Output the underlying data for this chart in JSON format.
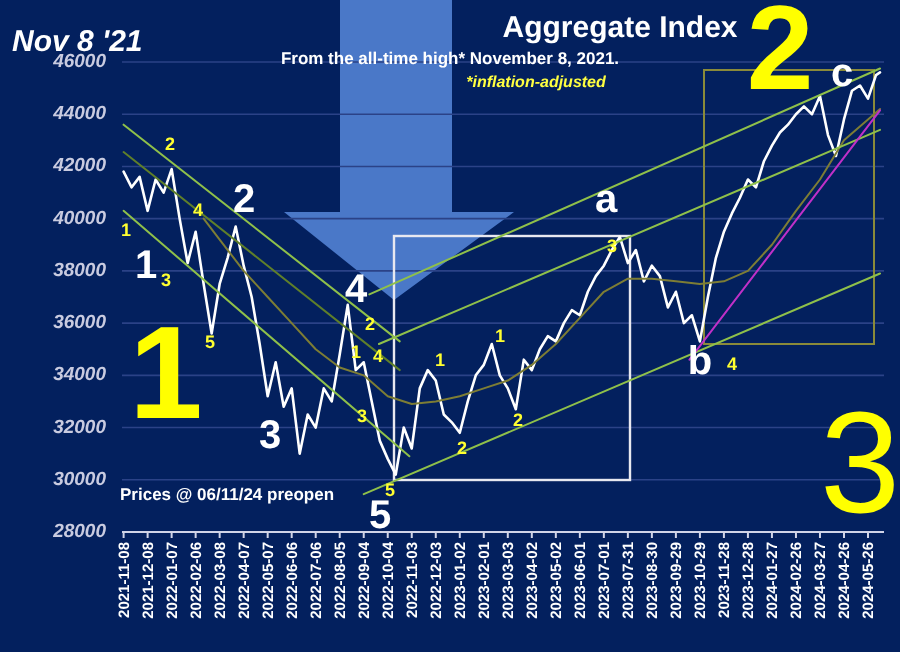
{
  "chart_data": {
    "type": "line",
    "title": "Aggregate Index",
    "subtitle": "From the all-time high* November 8, 2021.",
    "annotations": [
      "Nov 8 '21",
      "*inflation-adjusted",
      "Prices @ 06/11/24 preopen",
      "1",
      "2",
      "3",
      "1",
      "2",
      "3",
      "4",
      "5",
      "a",
      "b",
      "c",
      "1",
      "2",
      "3",
      "4",
      "5",
      "1",
      "2",
      "3",
      "4",
      "5",
      "1",
      "2",
      "1",
      "2",
      "3",
      "4"
    ],
    "x": [
      "2021-11-08",
      "2021-11-18",
      "2021-11-28",
      "2021-12-08",
      "2021-12-18",
      "2021-12-28",
      "2022-01-07",
      "2022-01-17",
      "2022-01-27",
      "2022-02-06",
      "2022-02-16",
      "2022-02-26",
      "2022-03-08",
      "2022-03-18",
      "2022-03-28",
      "2022-04-07",
      "2022-04-17",
      "2022-04-27",
      "2022-05-07",
      "2022-05-17",
      "2022-05-27",
      "2022-06-06",
      "2022-06-16",
      "2022-06-26",
      "2022-07-06",
      "2022-07-16",
      "2022-07-26",
      "2022-08-05",
      "2022-08-15",
      "2022-08-25",
      "2022-09-04",
      "2022-09-14",
      "2022-09-24",
      "2022-10-04",
      "2022-10-14",
      "2022-10-24",
      "2022-11-03",
      "2022-11-13",
      "2022-11-23",
      "2022-12-03",
      "2022-12-13",
      "2022-12-23",
      "2023-01-02",
      "2023-01-12",
      "2023-01-22",
      "2023-02-01",
      "2023-02-11",
      "2023-02-21",
      "2023-03-03",
      "2023-03-13",
      "2023-03-23",
      "2023-04-02",
      "2023-04-12",
      "2023-04-22",
      "2023-05-02",
      "2023-05-12",
      "2023-05-22",
      "2023-06-01",
      "2023-06-11",
      "2023-06-21",
      "2023-07-01",
      "2023-07-11",
      "2023-07-21",
      "2023-07-31",
      "2023-08-10",
      "2023-08-20",
      "2023-08-30",
      "2023-09-09",
      "2023-09-19",
      "2023-09-29",
      "2023-10-09",
      "2023-10-19",
      "2023-10-29",
      "2023-11-08",
      "2023-11-18",
      "2023-11-28",
      "2023-12-08",
      "2023-12-18",
      "2023-12-28",
      "2024-01-07",
      "2024-01-17",
      "2024-01-27",
      "2024-02-06",
      "2024-02-16",
      "2024-02-26",
      "2024-03-07",
      "2024-03-17",
      "2024-03-27",
      "2024-04-06",
      "2024-04-16",
      "2024-04-26",
      "2024-05-06",
      "2024-05-16",
      "2024-05-26",
      "2024-06-05",
      "2024-06-10"
    ],
    "series": [
      {
        "color": "#ffffff",
        "values": [
          41800,
          41200,
          41600,
          40300,
          41500,
          41000,
          41900,
          40000,
          38300,
          39500,
          37500,
          35600,
          37500,
          38500,
          39700,
          38200,
          37000,
          35200,
          33200,
          34500,
          32800,
          33500,
          31000,
          32500,
          32000,
          33500,
          33000,
          34800,
          36700,
          34200,
          34500,
          33000,
          31500,
          30800,
          30200,
          32000,
          31200,
          33500,
          34200,
          33800,
          32500,
          32200,
          31800,
          33000,
          34000,
          34400,
          35200,
          34000,
          33500,
          32700,
          34600,
          34200,
          35000,
          35500,
          35300,
          36000,
          36500,
          36300,
          37200,
          37800,
          38200,
          38800,
          39300,
          38300,
          38800,
          37600,
          38200,
          37800,
          36600,
          37200,
          36000,
          36300,
          35300,
          37000,
          38500,
          39500,
          40200,
          40800,
          41500,
          41200,
          42200,
          42800,
          43300,
          43600,
          44000,
          44300,
          44000,
          44700,
          43200,
          42400,
          43800,
          44900,
          45100,
          44600,
          45500,
          45600
        ]
      },
      {
        "color": "#7d7d35",
        "x": [
          "2022-02-16",
          "2022-03-08",
          "2022-04-07",
          "2022-05-07",
          "2022-06-06",
          "2022-07-06",
          "2022-08-05",
          "2022-09-04",
          "2022-10-04",
          "2022-11-03",
          "2022-12-03",
          "2023-01-02",
          "2023-02-01",
          "2023-03-03",
          "2023-04-02",
          "2023-05-02",
          "2023-06-01",
          "2023-07-01",
          "2023-07-31",
          "2023-08-30",
          "2023-09-29",
          "2023-10-29",
          "2023-11-28",
          "2023-12-28",
          "2024-01-27",
          "2024-02-26",
          "2024-03-27",
          "2024-04-26",
          "2024-05-26",
          "2024-06-10"
        ],
        "values": [
          40000,
          39200,
          38000,
          37000,
          36000,
          35000,
          34300,
          34000,
          33200,
          32900,
          33000,
          33200,
          33500,
          33800,
          34400,
          35200,
          36200,
          37200,
          37700,
          37700,
          37600,
          37500,
          37600,
          38000,
          39000,
          40300,
          41500,
          43000,
          43800,
          44200
        ]
      },
      {
        "color": "#8fc04a",
        "x": [
          "2021-11-08",
          "2022-10-19"
        ],
        "values": [
          43600,
          35300
        ]
      },
      {
        "color": "#5f7f2a",
        "x": [
          "2021-11-08",
          "2022-10-19"
        ],
        "values": [
          42550,
          34200
        ]
      },
      {
        "color": "#8fc04a",
        "x": [
          "2021-11-08",
          "2022-10-31"
        ],
        "values": [
          40300,
          30900
        ]
      },
      {
        "color": "#8fc04a",
        "x": [
          "2022-09-11",
          "2024-06-10"
        ],
        "values": [
          37100,
          45750
        ]
      },
      {
        "color": "#8fc04a",
        "x": [
          "2022-09-23",
          "2024-06-10"
        ],
        "values": [
          35200,
          43400
        ]
      },
      {
        "color": "#8fc04a",
        "x": [
          "2022-09-04",
          "2024-06-10"
        ],
        "values": [
          29450,
          37900
        ]
      },
      {
        "color": "#c030c8",
        "x": [
          "2023-10-16",
          "2024-06-10"
        ],
        "values": [
          34600,
          44150
        ]
      }
    ],
    "xlim": [
      "2021-11-06",
      "2024-06-15"
    ],
    "xticks": [
      "2021-11-08",
      "2021-12-08",
      "2022-01-07",
      "2022-02-06",
      "2022-03-08",
      "2022-04-07",
      "2022-05-07",
      "2022-06-06",
      "2022-07-06",
      "2022-08-05",
      "2022-09-04",
      "2022-10-04",
      "2022-11-03",
      "2022-12-03",
      "2023-01-02",
      "2023-02-01",
      "2023-03-03",
      "2023-04-02",
      "2023-05-02",
      "2023-06-01",
      "2023-07-01",
      "2023-07-31",
      "2023-08-30",
      "2023-09-29",
      "2023-10-29",
      "2023-11-28",
      "2023-12-28",
      "2024-01-27",
      "2024-02-26",
      "2024-03-27",
      "2024-04-26",
      "2024-05-26"
    ],
    "ylim": [
      28000,
      46000
    ],
    "yticks": [
      28000,
      30000,
      32000,
      34000,
      36000,
      38000,
      40000,
      42000,
      44000,
      46000
    ],
    "grid": "y"
  }
}
